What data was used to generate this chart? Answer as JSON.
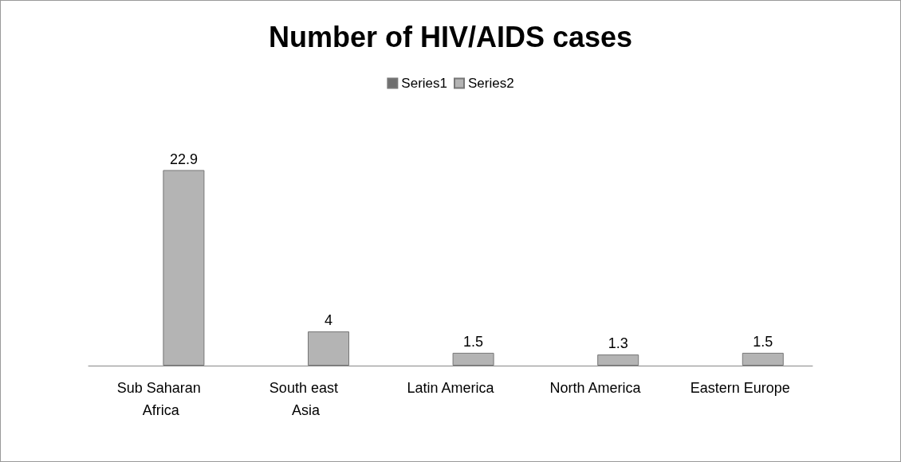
{
  "chart_data": {
    "type": "bar",
    "title": "Number of HIV/AIDS cases",
    "categories": [
      "Sub Saharan Africa",
      "South east Asia",
      "Latin America",
      "North America",
      "Eastern Europe"
    ],
    "series": [
      {
        "name": "Series1",
        "color": "#6e6e6e",
        "values": [
          null,
          null,
          null,
          null,
          null
        ]
      },
      {
        "name": "Series2",
        "color": "#b4b4b4",
        "values": [
          22.9,
          4,
          1.5,
          1.3,
          1.5
        ]
      }
    ],
    "data_labels": true,
    "legend": "top"
  }
}
